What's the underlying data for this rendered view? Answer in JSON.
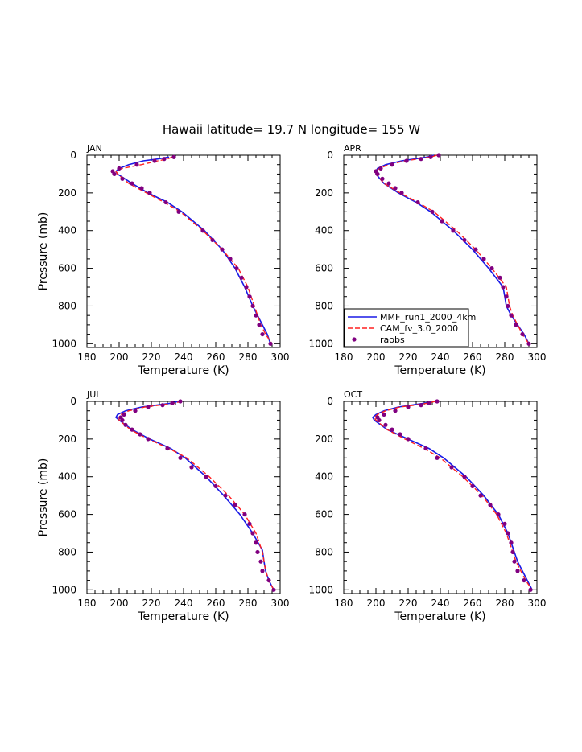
{
  "title": "Hawaii  latitude= 19.7 N longitude= 155 W",
  "colors": {
    "mmf": "#1a1ae6",
    "cam": "#ff2020",
    "raobs": "#800080"
  },
  "legend": {
    "entries": [
      {
        "label": "MMF_run1_2000_4km",
        "style": "solid-blue"
      },
      {
        "label": "CAM_fv_3.0_2000",
        "style": "dashed-red"
      },
      {
        "label": "raobs",
        "style": "purple-dots"
      }
    ],
    "placement": "inside APR panel, bottom-left"
  },
  "chart_data": [
    {
      "type": "line",
      "panel": "JAN",
      "xlabel": "Temperature (K)",
      "ylabel": "Pressure (mb)",
      "xlim": [
        180,
        300
      ],
      "ylim": [
        1020,
        0
      ],
      "xticks": [
        180,
        200,
        220,
        240,
        260,
        280,
        300
      ],
      "yticks": [
        0,
        200,
        400,
        600,
        800,
        1000
      ],
      "series": [
        {
          "name": "MMF_run1_2000_4km",
          "p": [
            10,
            20,
            30,
            50,
            70,
            85,
            100,
            150,
            200,
            250,
            300,
            400,
            500,
            600,
            700,
            800,
            850,
            900,
            950,
            1000
          ],
          "t": [
            231,
            224,
            215,
            206,
            200,
            198,
            199,
            208,
            218,
            230,
            239,
            253,
            264,
            272,
            278,
            283,
            286,
            289,
            292,
            294
          ]
        },
        {
          "name": "CAM_fv_3.0_2000",
          "p": [
            10,
            20,
            30,
            50,
            70,
            85,
            100,
            150,
            200,
            250,
            300,
            400,
            500,
            600,
            700,
            800,
            850,
            900,
            950,
            1000
          ],
          "t": [
            233,
            230,
            224,
            214,
            202,
            198,
            199,
            206,
            217,
            228,
            238,
            252,
            264,
            274,
            280,
            284,
            286,
            288,
            291,
            295
          ]
        },
        {
          "name": "raobs",
          "p": [
            10,
            20,
            30,
            50,
            70,
            85,
            100,
            125,
            150,
            175,
            200,
            250,
            300,
            400,
            450,
            500,
            550,
            600,
            650,
            700,
            750,
            800,
            850,
            900,
            950,
            1000
          ],
          "t": [
            234,
            228,
            222,
            211,
            200,
            196,
            197,
            202,
            208,
            214,
            219,
            229,
            237,
            252,
            258,
            264,
            269,
            273,
            276,
            279,
            281,
            283,
            285,
            287,
            289,
            294
          ]
        }
      ]
    },
    {
      "type": "line",
      "panel": "APR",
      "xlabel": "Temperature (K)",
      "ylabel": "",
      "xlim": [
        180,
        300
      ],
      "ylim": [
        1020,
        0
      ],
      "xticks": [
        180,
        200,
        220,
        240,
        260,
        280,
        300
      ],
      "yticks": [
        0,
        200,
        400,
        600,
        800,
        1000
      ],
      "series": [
        {
          "name": "MMF_run1_2000_4km",
          "p": [
            0,
            10,
            20,
            30,
            50,
            70,
            85,
            100,
            150,
            200,
            250,
            300,
            400,
            500,
            600,
            700,
            800,
            850,
            900,
            950,
            1000
          ],
          "t": [
            236,
            232,
            224,
            216,
            206,
            201,
            200,
            200,
            205,
            214,
            225,
            234,
            248,
            260,
            270,
            279,
            281,
            284,
            288,
            292,
            295
          ]
        },
        {
          "name": "CAM_fv_3.0_2000",
          "p": [
            0,
            10,
            20,
            30,
            50,
            70,
            85,
            100,
            150,
            200,
            250,
            300,
            400,
            500,
            600,
            700,
            800,
            850,
            900,
            950,
            1000
          ],
          "t": [
            238,
            234,
            226,
            218,
            208,
            202,
            200,
            200,
            205,
            215,
            226,
            236,
            250,
            262,
            272,
            281,
            283,
            285,
            288,
            291,
            295
          ]
        },
        {
          "name": "raobs",
          "p": [
            0,
            10,
            20,
            30,
            50,
            70,
            85,
            100,
            125,
            150,
            175,
            200,
            250,
            300,
            350,
            400,
            450,
            500,
            550,
            600,
            650,
            700,
            750,
            800,
            850,
            900,
            950,
            1000
          ],
          "t": [
            239,
            234,
            228,
            219,
            210,
            203,
            200,
            201,
            204,
            208,
            212,
            216,
            226,
            235,
            241,
            248,
            255,
            262,
            267,
            272,
            277,
            279,
            281,
            282,
            284,
            287,
            291,
            295
          ]
        }
      ]
    },
    {
      "type": "line",
      "panel": "JUL",
      "xlabel": "Temperature (K)",
      "ylabel": "Pressure (mb)",
      "xlim": [
        180,
        300
      ],
      "ylim": [
        1020,
        0
      ],
      "xticks": [
        180,
        200,
        220,
        240,
        260,
        280,
        300
      ],
      "yticks": [
        0,
        200,
        400,
        600,
        800,
        1000
      ],
      "series": [
        {
          "name": "MMF_run1_2000_4km",
          "p": [
            0,
            10,
            20,
            30,
            50,
            70,
            85,
            100,
            150,
            200,
            250,
            300,
            400,
            500,
            600,
            700,
            790,
            850,
            900,
            950,
            1000
          ],
          "t": [
            237,
            232,
            223,
            214,
            204,
            199,
            198,
            200,
            208,
            219,
            232,
            241,
            254,
            265,
            275,
            283,
            289,
            290,
            291,
            293,
            296
          ]
        },
        {
          "name": "CAM_fv_3.0_2000",
          "p": [
            0,
            10,
            20,
            30,
            50,
            70,
            85,
            100,
            150,
            200,
            250,
            300,
            400,
            500,
            600,
            700,
            800,
            850,
            900,
            950,
            1000
          ],
          "t": [
            239,
            234,
            225,
            216,
            206,
            201,
            200,
            200,
            207,
            218,
            231,
            242,
            256,
            268,
            278,
            285,
            289,
            290,
            291,
            293,
            296
          ]
        },
        {
          "name": "raobs",
          "p": [
            0,
            10,
            20,
            30,
            50,
            70,
            85,
            100,
            125,
            150,
            175,
            200,
            250,
            300,
            350,
            400,
            450,
            500,
            550,
            600,
            650,
            700,
            750,
            800,
            850,
            900,
            950,
            1000
          ],
          "t": [
            238,
            233,
            227,
            218,
            210,
            203,
            201,
            202,
            204,
            208,
            213,
            218,
            230,
            238,
            245,
            254,
            260,
            266,
            272,
            278,
            281,
            283,
            285,
            286,
            288,
            289,
            293,
            296
          ]
        }
      ]
    },
    {
      "type": "line",
      "panel": "OCT",
      "xlabel": "Temperature (K)",
      "ylabel": "",
      "xlim": [
        180,
        300
      ],
      "ylim": [
        1020,
        0
      ],
      "xticks": [
        180,
        200,
        220,
        240,
        260,
        280,
        300
      ],
      "yticks": [
        0,
        200,
        400,
        600,
        800,
        1000
      ],
      "series": [
        {
          "name": "MMF_run1_2000_4km",
          "p": [
            0,
            10,
            20,
            30,
            50,
            70,
            85,
            100,
            150,
            200,
            250,
            300,
            400,
            500,
            600,
            700,
            800,
            850,
            900,
            950,
            1000
          ],
          "t": [
            235,
            230,
            222,
            214,
            205,
            200,
            198,
            199,
            207,
            220,
            233,
            242,
            256,
            267,
            276,
            282,
            286,
            288,
            291,
            294,
            297
          ]
        },
        {
          "name": "CAM_fv_3.0_2000",
          "p": [
            0,
            10,
            20,
            30,
            50,
            70,
            85,
            100,
            150,
            200,
            250,
            300,
            400,
            500,
            600,
            700,
            800,
            850,
            900,
            950,
            1000
          ],
          "t": [
            237,
            232,
            224,
            215,
            206,
            201,
            199,
            200,
            207,
            218,
            230,
            240,
            254,
            266,
            275,
            281,
            285,
            287,
            290,
            293,
            297
          ]
        },
        {
          "name": "raobs",
          "p": [
            0,
            10,
            20,
            30,
            50,
            70,
            85,
            100,
            125,
            150,
            175,
            200,
            250,
            300,
            350,
            400,
            450,
            500,
            550,
            600,
            650,
            700,
            750,
            800,
            850,
            900,
            950,
            1000
          ],
          "t": [
            238,
            233,
            228,
            220,
            212,
            205,
            201,
            202,
            206,
            210,
            215,
            220,
            231,
            238,
            247,
            255,
            260,
            265,
            271,
            276,
            280,
            282,
            284,
            285,
            286,
            288,
            292,
            296
          ]
        }
      ]
    }
  ]
}
